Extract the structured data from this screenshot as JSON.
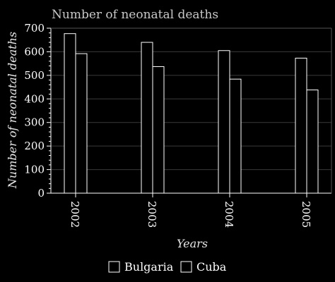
{
  "chart_data": {
    "type": "bar",
    "title": "Number of neonatal deaths",
    "xlabel": "Years",
    "ylabel": "Number of neonatal deaths",
    "categories": [
      "2002",
      "2003",
      "2004",
      "2005"
    ],
    "series": [
      {
        "name": "Bulgaria",
        "values": [
          677,
          640,
          605,
          573
        ]
      },
      {
        "name": "Cuba",
        "values": [
          592,
          537,
          484,
          438
        ]
      }
    ],
    "ylim": [
      0,
      700
    ],
    "yticks": [
      0,
      100,
      200,
      300,
      400,
      500,
      600,
      700
    ],
    "grid": true,
    "legend_position": "bottom",
    "colors": {
      "background": "#000000",
      "bar_fill": "#000000",
      "bar_stroke": "#ffffff",
      "grid": "#3a3a3a",
      "axis": "#ffffff"
    }
  }
}
